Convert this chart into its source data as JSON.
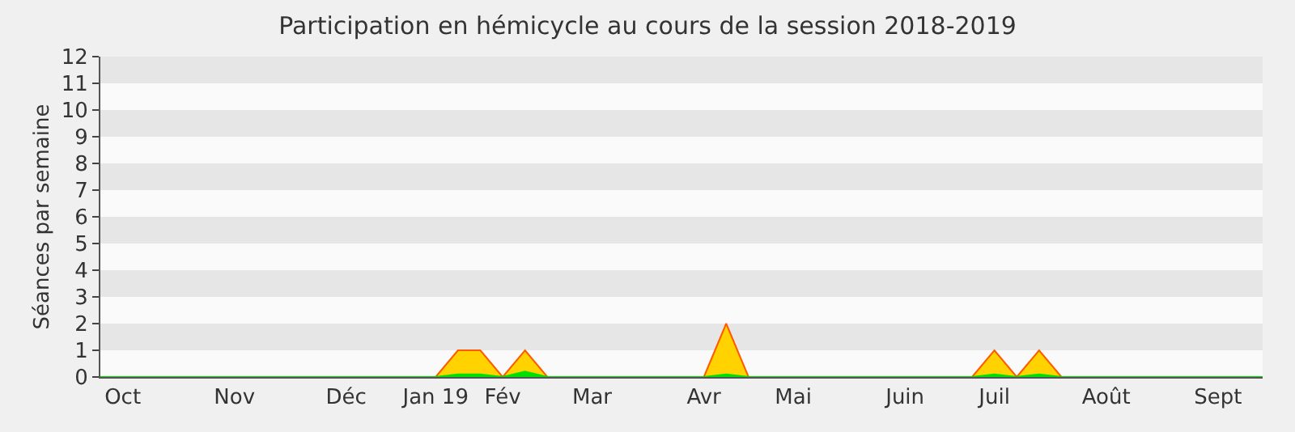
{
  "chart_data": {
    "type": "area",
    "title": "Participation en hémicycle au cours de la session 2018-2019",
    "ylabel": "Séances par semaine",
    "categories": [
      null,
      "Oct",
      null,
      null,
      null,
      null,
      "Nov",
      null,
      null,
      null,
      null,
      "Déc",
      null,
      null,
      null,
      "Jan 19",
      null,
      null,
      "Fév",
      null,
      null,
      null,
      "Mar",
      null,
      null,
      null,
      null,
      "Avr",
      null,
      null,
      null,
      "Mai",
      null,
      null,
      null,
      null,
      "Juin",
      null,
      null,
      null,
      "Juil",
      null,
      null,
      null,
      null,
      "Août",
      null,
      null,
      null,
      null,
      "Sept",
      null,
      null
    ],
    "series": [
      {
        "color": "#ffd200",
        "values": [
          0,
          0,
          0,
          0,
          0,
          0,
          0,
          0,
          0,
          0,
          0,
          0,
          0,
          0,
          0,
          0,
          1,
          1,
          0,
          1,
          0,
          0,
          0,
          0,
          0,
          0,
          0,
          0,
          2,
          0,
          0,
          0,
          0,
          0,
          0,
          0,
          0,
          0,
          0,
          0,
          1,
          0,
          1,
          0,
          0,
          0,
          0,
          0,
          0,
          0,
          0,
          0,
          0
        ]
      },
      {
        "color": "#00e000",
        "values": [
          0,
          0,
          0,
          0,
          0,
          0,
          0,
          0,
          0,
          0,
          0,
          0,
          0,
          0,
          0,
          0,
          0.1,
          0.1,
          0,
          0.2,
          0,
          0,
          0,
          0,
          0,
          0,
          0,
          0,
          0.1,
          0,
          0,
          0,
          0,
          0,
          0,
          0,
          0,
          0,
          0,
          0,
          0.1,
          0,
          0.1,
          0,
          0,
          0,
          0,
          0,
          0,
          0,
          0,
          0,
          0
        ]
      }
    ],
    "ylim": [
      0,
      12
    ],
    "yticks": [
      0,
      1,
      2,
      3,
      4,
      5,
      6,
      7,
      8,
      9,
      10,
      11,
      12
    ]
  }
}
